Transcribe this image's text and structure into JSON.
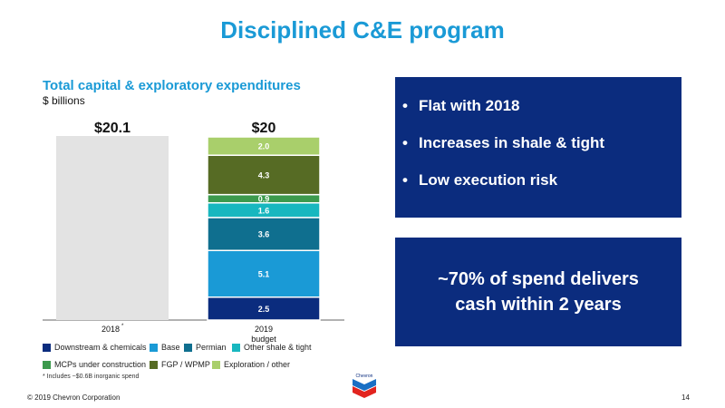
{
  "slide": {
    "title": "Disciplined C&E program",
    "copyright": "© 2019 Chevron Corporation",
    "page_number": "14",
    "footnote": "* Includes ~$0.6B inorganic spend",
    "logo_text": "Chevron"
  },
  "chart_data": {
    "type": "bar",
    "title": "Total capital & exploratory expenditures",
    "subtitle": "$ billions",
    "categories": [
      "2018*",
      "2019 budget"
    ],
    "totals": [
      "$20.1",
      "$20"
    ],
    "total_2018": 20.1,
    "series": [
      {
        "name": "Downstream & chemicals",
        "color": "#0b2c7e",
        "values": [
          null,
          2.5
        ]
      },
      {
        "name": "Base",
        "color": "#1a9ad6",
        "values": [
          null,
          5.1
        ]
      },
      {
        "name": "Permian",
        "color": "#0f6f8f",
        "values": [
          null,
          3.6
        ]
      },
      {
        "name": "Other shale & tight",
        "color": "#18b7bf",
        "values": [
          null,
          1.6
        ]
      },
      {
        "name": "MCPs under construction",
        "color": "#3c9a4d",
        "values": [
          null,
          0.9
        ]
      },
      {
        "name": "FGP / WPMP",
        "color": "#566b24",
        "values": [
          null,
          4.3
        ]
      },
      {
        "name": "Exploration / other",
        "color": "#a9cf6b",
        "values": [
          null,
          2.0
        ]
      }
    ],
    "ylim": [
      0,
      20.1
    ],
    "colors": {
      "bar_2018": "#e3e3e3"
    }
  },
  "panel": {
    "bullets": [
      "Flat with 2018",
      "Increases in shale & tight",
      "Low execution risk"
    ],
    "bullet_char": "•",
    "callout_line1": "~70% of spend delivers",
    "callout_line2": "cash within 2 years"
  }
}
